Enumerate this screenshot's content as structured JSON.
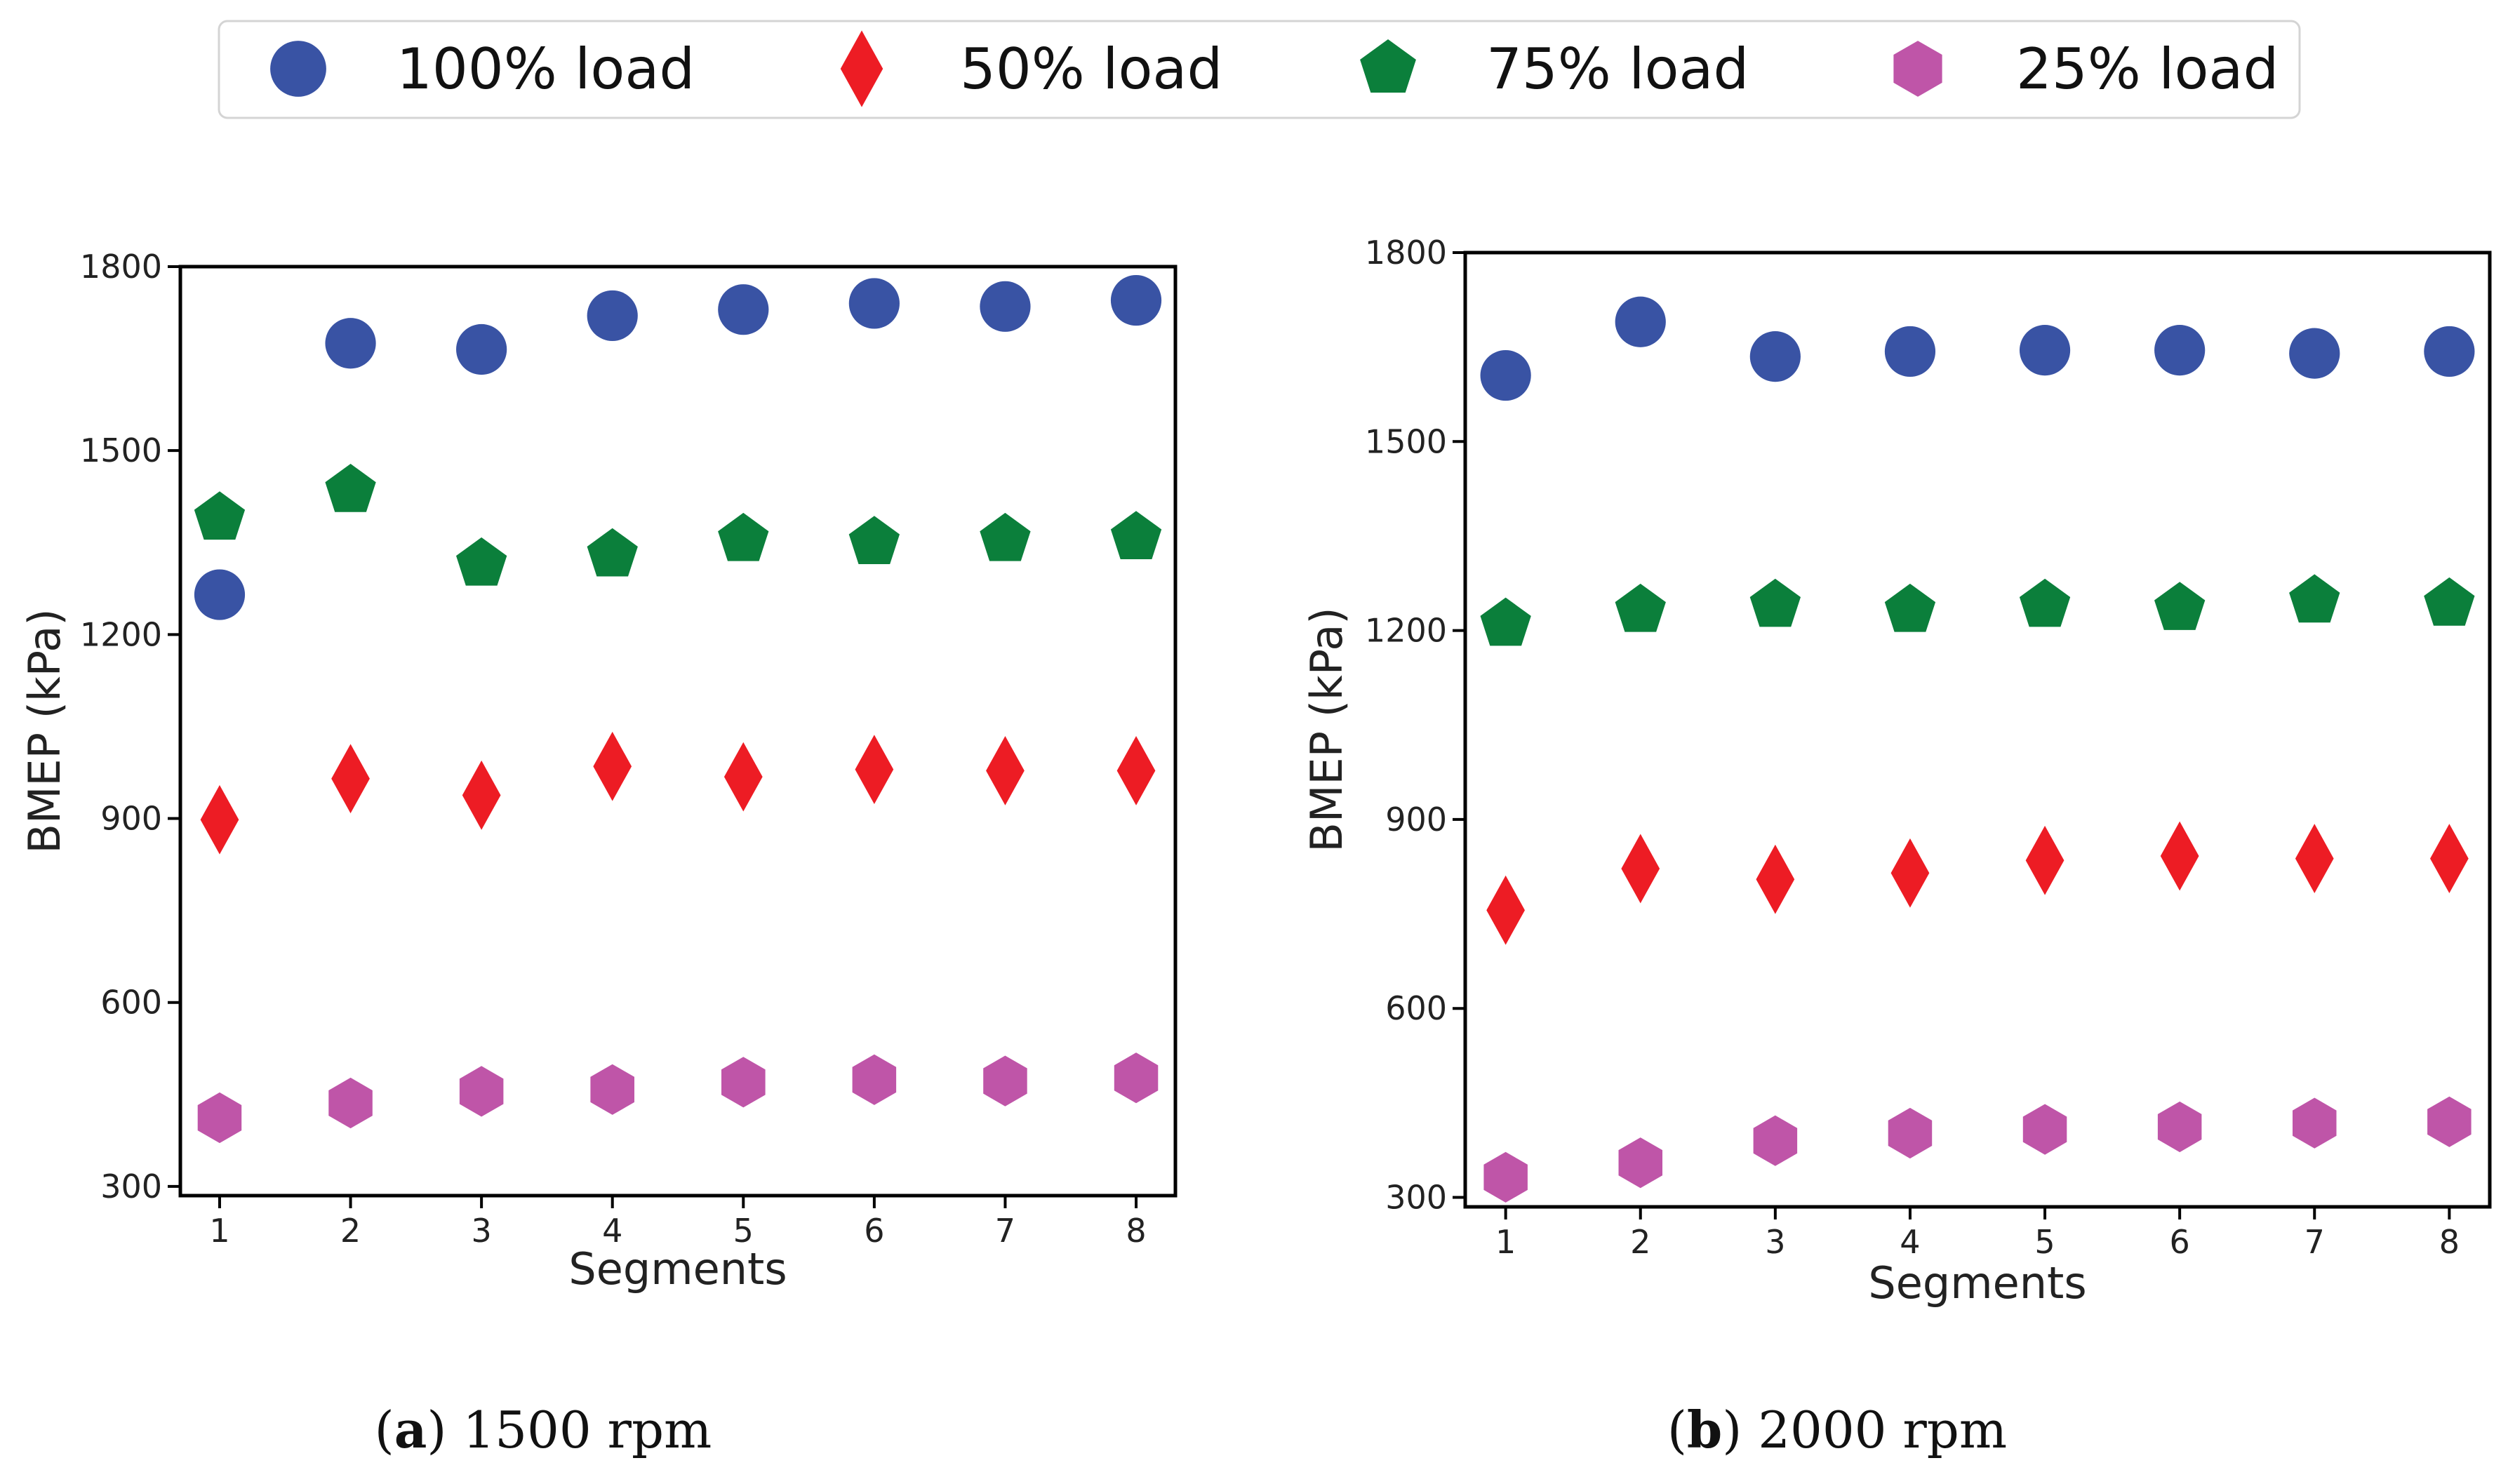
{
  "legend": {
    "entries": [
      {
        "label": "100% load",
        "marker": "circle-marker",
        "color": "#3953a4"
      },
      {
        "label": "50% load",
        "marker": "diamond-marker",
        "color": "#ed1c24"
      },
      {
        "label": "75% load",
        "marker": "pentagon-marker",
        "color": "#0b7f3b"
      },
      {
        "label": "25% load",
        "marker": "hexagon-marker",
        "color": "#bf55a8"
      }
    ],
    "placement": "top-center"
  },
  "chart_data": [
    {
      "type": "scatter",
      "panel": "a",
      "caption_letter": "a",
      "caption_text": "1500 rpm",
      "xlabel": "Segments",
      "ylabel": "BMEP (kPa)",
      "x": [
        1,
        2,
        3,
        4,
        5,
        6,
        7,
        8
      ],
      "xlim": [
        0.7,
        8.3
      ],
      "ylim": [
        285,
        1800
      ],
      "yticks": [
        300,
        600,
        900,
        1200,
        1500,
        1800
      ],
      "grid": false,
      "series": [
        {
          "name": "100% load",
          "marker": "circle",
          "color": "#3953a4",
          "values": [
            1265,
            1675,
            1665,
            1720,
            1730,
            1740,
            1735,
            1745
          ]
        },
        {
          "name": "75% load",
          "marker": "pentagon",
          "color": "#0b7f3b",
          "values": [
            1390,
            1435,
            1315,
            1330,
            1355,
            1350,
            1355,
            1358
          ]
        },
        {
          "name": "50% load",
          "marker": "diamond",
          "color": "#ed1c24",
          "values": [
            898,
            965,
            938,
            985,
            968,
            980,
            978,
            978
          ]
        },
        {
          "name": "25% load",
          "marker": "hexagon",
          "color": "#bf55a8",
          "values": [
            412,
            436,
            455,
            458,
            470,
            474,
            472,
            477
          ]
        }
      ]
    },
    {
      "type": "scatter",
      "panel": "b",
      "caption_letter": "b",
      "caption_text": "2000 rpm",
      "xlabel": "Segments",
      "ylabel": "BMEP (kPa)",
      "x": [
        1,
        2,
        3,
        4,
        5,
        6,
        7,
        8
      ],
      "xlim": [
        0.7,
        8.3
      ],
      "ylim": [
        285,
        1800
      ],
      "yticks": [
        300,
        600,
        900,
        1200,
        1500,
        1800
      ],
      "grid": false,
      "series": [
        {
          "name": "100% load",
          "marker": "circle",
          "color": "#3953a4",
          "values": [
            1605,
            1690,
            1635,
            1643,
            1645,
            1645,
            1640,
            1643
          ]
        },
        {
          "name": "75% load",
          "marker": "pentagon",
          "color": "#0b7f3b",
          "values": [
            1210,
            1232,
            1240,
            1232,
            1240,
            1235,
            1247,
            1242
          ]
        },
        {
          "name": "50% load",
          "marker": "diamond",
          "color": "#ed1c24",
          "values": [
            756,
            822,
            805,
            815,
            835,
            842,
            838,
            838
          ]
        },
        {
          "name": "25% load",
          "marker": "hexagon",
          "color": "#bf55a8",
          "values": [
            332,
            355,
            390,
            402,
            408,
            412,
            418,
            420
          ]
        }
      ]
    }
  ]
}
